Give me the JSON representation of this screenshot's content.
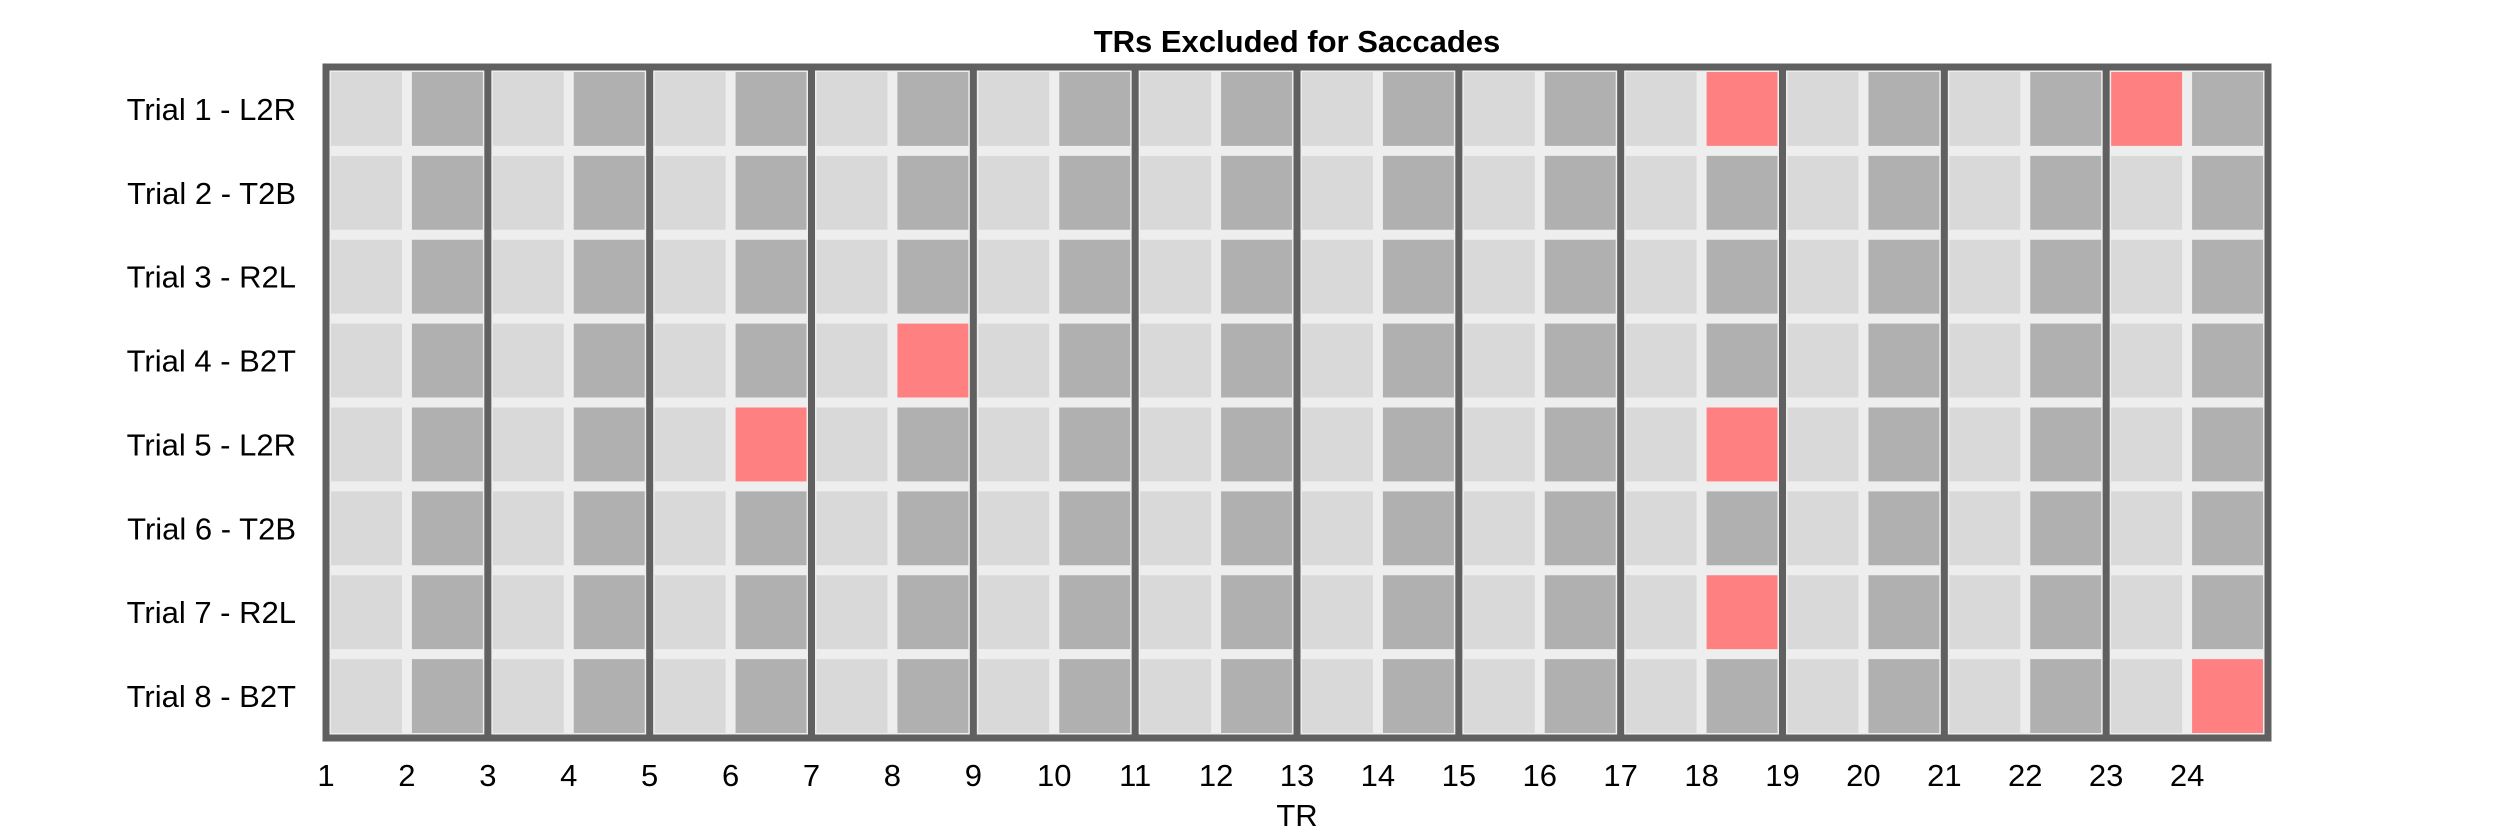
{
  "chart_data": {
    "type": "heatmap",
    "title": "TRs Excluded for Saccades",
    "xlabel": "TR",
    "ylabel": "",
    "x_ticks": [
      "1",
      "2",
      "3",
      "4",
      "5",
      "6",
      "7",
      "8",
      "9",
      "10",
      "11",
      "12",
      "13",
      "14",
      "15",
      "16",
      "17",
      "18",
      "19",
      "20",
      "21",
      "22",
      "23",
      "24"
    ],
    "rows": [
      "Trial 1 - L2R",
      "Trial 2 - T2B",
      "Trial 3 - R2L",
      "Trial 4 - B2T",
      "Trial 5 - L2R",
      "Trial 6 - T2B",
      "Trial 7 - R2L",
      "Trial 8 - B2T"
    ],
    "n_trs": 24,
    "excluded": [
      {
        "trial": "Trial 1 - L2R",
        "trs": [
          18,
          23
        ]
      },
      {
        "trial": "Trial 2 - T2B",
        "trs": []
      },
      {
        "trial": "Trial 3 - R2L",
        "trs": []
      },
      {
        "trial": "Trial 4 - B2T",
        "trs": [
          8
        ]
      },
      {
        "trial": "Trial 5 - L2R",
        "trs": [
          6,
          18
        ]
      },
      {
        "trial": "Trial 6 - T2B",
        "trs": []
      },
      {
        "trial": "Trial 7 - R2L",
        "trs": [
          18
        ]
      },
      {
        "trial": "Trial 8 - B2T",
        "trs": [
          24
        ]
      }
    ],
    "colors": {
      "odd_tr": "#d9d9d9",
      "even_tr": "#b0b0b0",
      "excluded": "#ff8080",
      "gap": "#eeeeee",
      "boundary": "#606060"
    }
  }
}
